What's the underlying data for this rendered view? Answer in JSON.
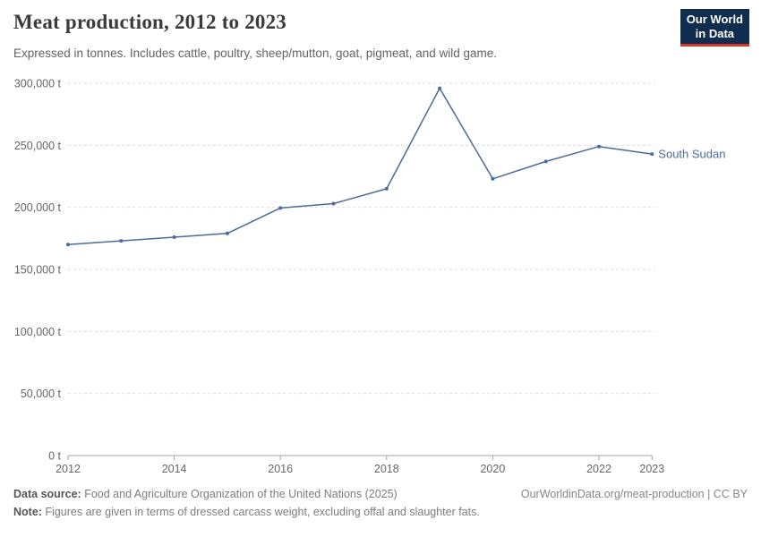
{
  "header": {
    "title": "Meat production, 2012 to 2023",
    "subtitle": "Expressed in tonnes. Includes cattle, poultry, sheep/mutton, goat, pigmeat, and wild game.",
    "logo": {
      "line1": "Our World",
      "line2": "in Data"
    }
  },
  "chart_data": {
    "type": "line",
    "title": "Meat production, 2012 to 2023",
    "xlabel": "",
    "ylabel": "",
    "unit": "t",
    "xlim": [
      2012,
      2023
    ],
    "ylim": [
      0,
      300000
    ],
    "grid": "horizontal-dashed",
    "legend_position": "end-of-line-label",
    "x": [
      2012,
      2013,
      2014,
      2015,
      2016,
      2017,
      2018,
      2019,
      2020,
      2021,
      2022,
      2023
    ],
    "series": [
      {
        "name": "South Sudan",
        "color": "#4c6a9c",
        "values": [
          170000,
          173000,
          176000,
          179000,
          199500,
          203000,
          215000,
          296000,
          223000,
          237000,
          249000,
          243000
        ]
      }
    ],
    "x_ticks": [
      2012,
      2014,
      2016,
      2018,
      2020,
      2022,
      2023
    ],
    "y_ticks": [
      0,
      50000,
      100000,
      150000,
      200000,
      250000,
      300000
    ],
    "y_tick_labels": [
      "0 t",
      "50,000 t",
      "100,000 t",
      "150,000 t",
      "200,000 t",
      "250,000 t",
      "300,000 t"
    ]
  },
  "footer": {
    "datasource_label": "Data source:",
    "datasource_value": " Food and Agriculture Organization of the United Nations (2025)",
    "note_label": "Note:",
    "note_value": " Figures are given in terms of dressed carcass weight, excluding offal and slaughter fats.",
    "right_text": "OurWorldinData.org/meat-production | CC BY"
  },
  "colors": {
    "line": "#4c6a9c",
    "grid": "#dcdcdc",
    "axis": "#a3a3a3",
    "tick_text": "#666666",
    "logo_bg": "#102d4f",
    "logo_red": "#d23b2c"
  }
}
